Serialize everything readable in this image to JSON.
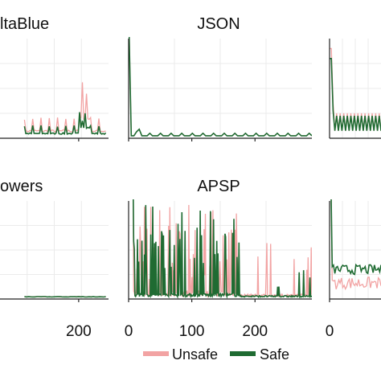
{
  "colors": {
    "unsafe": "#f2a3a3",
    "safe": "#1f6b32",
    "grid": "#ebebeb",
    "axis": "#222222",
    "background": "#ffffff"
  },
  "legend": {
    "placement": "bottom",
    "items": [
      {
        "label": "Unsafe",
        "color": "#f2a3a3"
      },
      {
        "label": "Safe",
        "color": "#1f6b32"
      }
    ]
  },
  "chart_data": [
    {
      "type": "line",
      "title": "ltaBlue",
      "panel": "top-left",
      "xlim": [
        -90,
        310
      ],
      "xticks": [
        200
      ],
      "ylim": [
        0,
        2
      ],
      "grid": true,
      "axis_left": false,
      "series": [
        {
          "name": "Unsafe",
          "generator": "deltaUnsafe",
          "x_range": [
            0,
            300
          ],
          "n": 60
        },
        {
          "name": "Safe",
          "generator": "deltaSafe",
          "x_range": [
            0,
            300
          ],
          "n": 60
        }
      ]
    },
    {
      "type": "line",
      "title": "JSON",
      "panel": "top-middle",
      "xlim": [
        0,
        290
      ],
      "xticks": [
        0,
        100,
        200
      ],
      "ylim": [
        0,
        2
      ],
      "grid": true,
      "axis_left": true,
      "series": [
        {
          "name": "Unsafe",
          "generator": "jsonSeries",
          "x_range": [
            0,
            290
          ],
          "n": 70
        },
        {
          "name": "Safe",
          "generator": "jsonSeries",
          "x_range": [
            0,
            290
          ],
          "n": 70
        }
      ]
    },
    {
      "type": "line",
      "title": "",
      "panel": "top-right",
      "xlim": [
        0,
        80
      ],
      "xticks": [],
      "ylim": [
        0,
        2
      ],
      "grid": true,
      "axis_left": true,
      "series": [
        {
          "name": "Unsafe",
          "generator": "rightTopUnsafe",
          "x_range": [
            0,
            80
          ],
          "n": 30
        },
        {
          "name": "Safe",
          "generator": "rightTopSafe",
          "x_range": [
            0,
            80
          ],
          "n": 30
        }
      ]
    },
    {
      "type": "line",
      "title": "owers",
      "panel": "bottom-left",
      "xlim": [
        -90,
        310
      ],
      "xticks": [
        200
      ],
      "ylim": [
        0,
        2
      ],
      "grid": true,
      "axis_left": false,
      "series": [
        {
          "name": "Unsafe",
          "generator": "flat",
          "x_range": [
            0,
            300
          ],
          "n": 40
        },
        {
          "name": "Safe",
          "generator": "flat",
          "x_range": [
            0,
            300
          ],
          "n": 40
        }
      ]
    },
    {
      "type": "line",
      "title": "APSP",
      "panel": "bottom-middle",
      "xlim": [
        0,
        290
      ],
      "xticks": [
        0,
        100,
        200
      ],
      "ylim": [
        0,
        2
      ],
      "grid": true,
      "axis_left": true,
      "series": [
        {
          "name": "Unsafe",
          "generator": "apspUnsafe",
          "x_range": [
            0,
            290
          ],
          "n": 290
        },
        {
          "name": "Safe",
          "generator": "apspSafe",
          "x_range": [
            0,
            290
          ],
          "n": 290
        }
      ]
    },
    {
      "type": "line",
      "title": "",
      "panel": "bottom-right",
      "xlim": [
        0,
        80
      ],
      "xticks": [
        0
      ],
      "ylim": [
        0,
        2
      ],
      "grid": true,
      "axis_left": true,
      "series": [
        {
          "name": "Unsafe",
          "generator": "rightBotUnsafe",
          "x_range": [
            0,
            80
          ],
          "n": 40
        },
        {
          "name": "Safe",
          "generator": "rightBotSafe",
          "x_range": [
            0,
            80
          ],
          "n": 40
        }
      ]
    }
  ]
}
